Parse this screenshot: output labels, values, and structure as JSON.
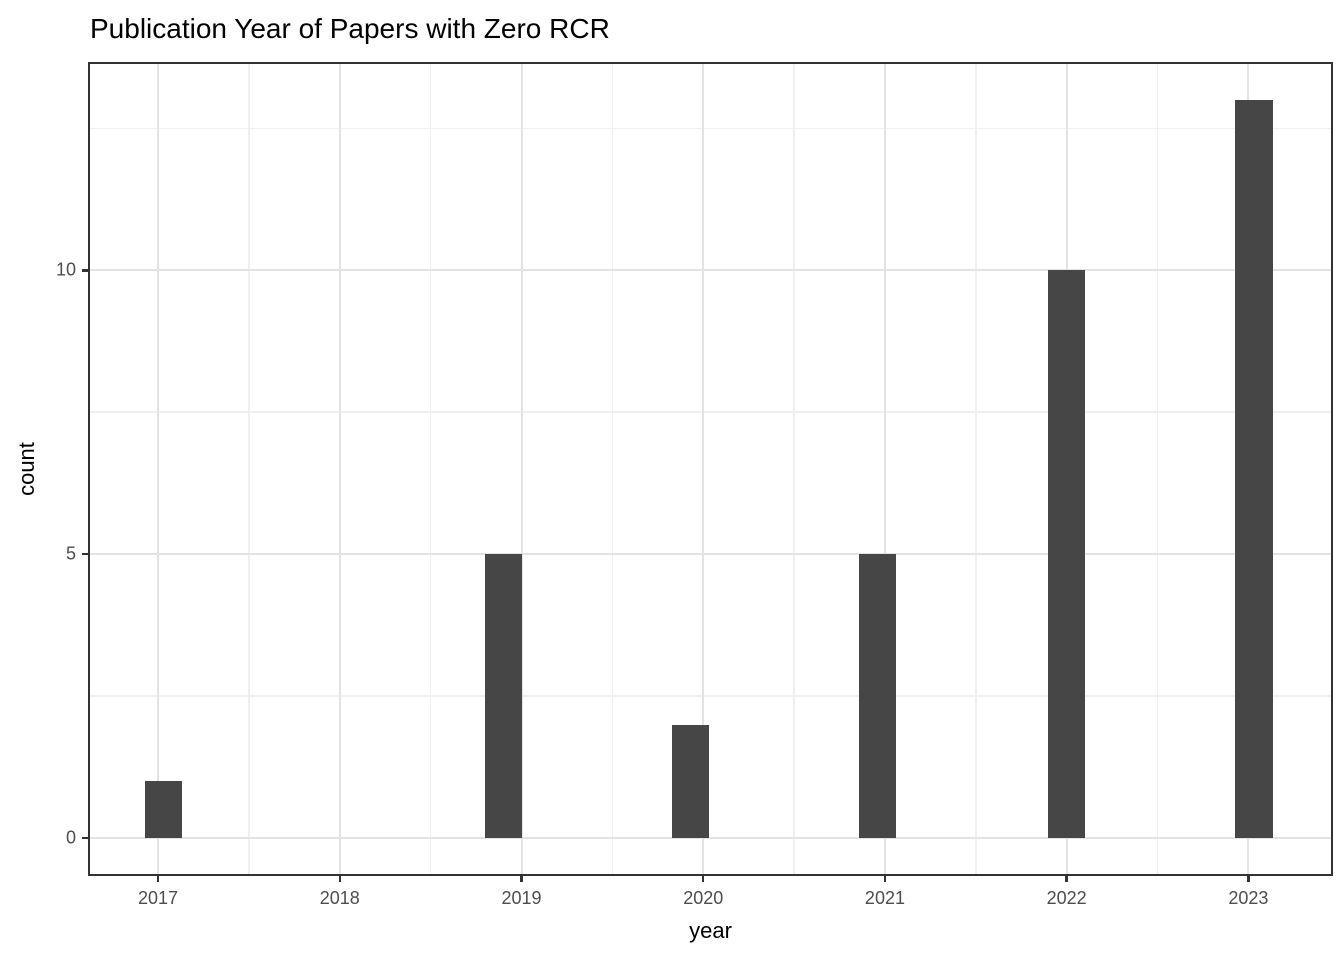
{
  "chart_data": {
    "type": "bar",
    "subtype": "histogram",
    "title": "Publication Year of Papers with Zero RCR",
    "xlabel": "year",
    "ylabel": "count",
    "categories": [
      2017,
      2018,
      2019,
      2020,
      2021,
      2022,
      2023
    ],
    "values": [
      1,
      0,
      5,
      2,
      5,
      10,
      13
    ],
    "bins": [
      {
        "center": 2017.03,
        "count": 1
      },
      {
        "center": 2018.9,
        "count": 5
      },
      {
        "center": 2019.93,
        "count": 2
      },
      {
        "center": 2020.96,
        "count": 5
      },
      {
        "center": 2022.0,
        "count": 10
      },
      {
        "center": 2023.03,
        "count": 13
      }
    ],
    "bin_width": 0.207,
    "xticks": [
      2017,
      2018,
      2019,
      2020,
      2021,
      2022,
      2023
    ],
    "yticks": [
      0,
      5,
      10
    ],
    "xticks_minor": [
      2017.5,
      2018.5,
      2019.5,
      2020.5,
      2021.5,
      2022.5
    ],
    "yticks_minor": [
      2.5,
      7.5,
      12.5
    ],
    "xlim": [
      2016.62,
      2023.46
    ],
    "ylim": [
      -0.65,
      13.65
    ],
    "grid": true,
    "legend": "none",
    "colors": {
      "bar_fill": "#464646",
      "grid_major": "#e3e3e3",
      "grid_minor": "#efefef",
      "panel_border": "#333333",
      "tick_mark": "#333333",
      "tick_text": "#4d4d4d",
      "title_text": "#000000"
    }
  }
}
